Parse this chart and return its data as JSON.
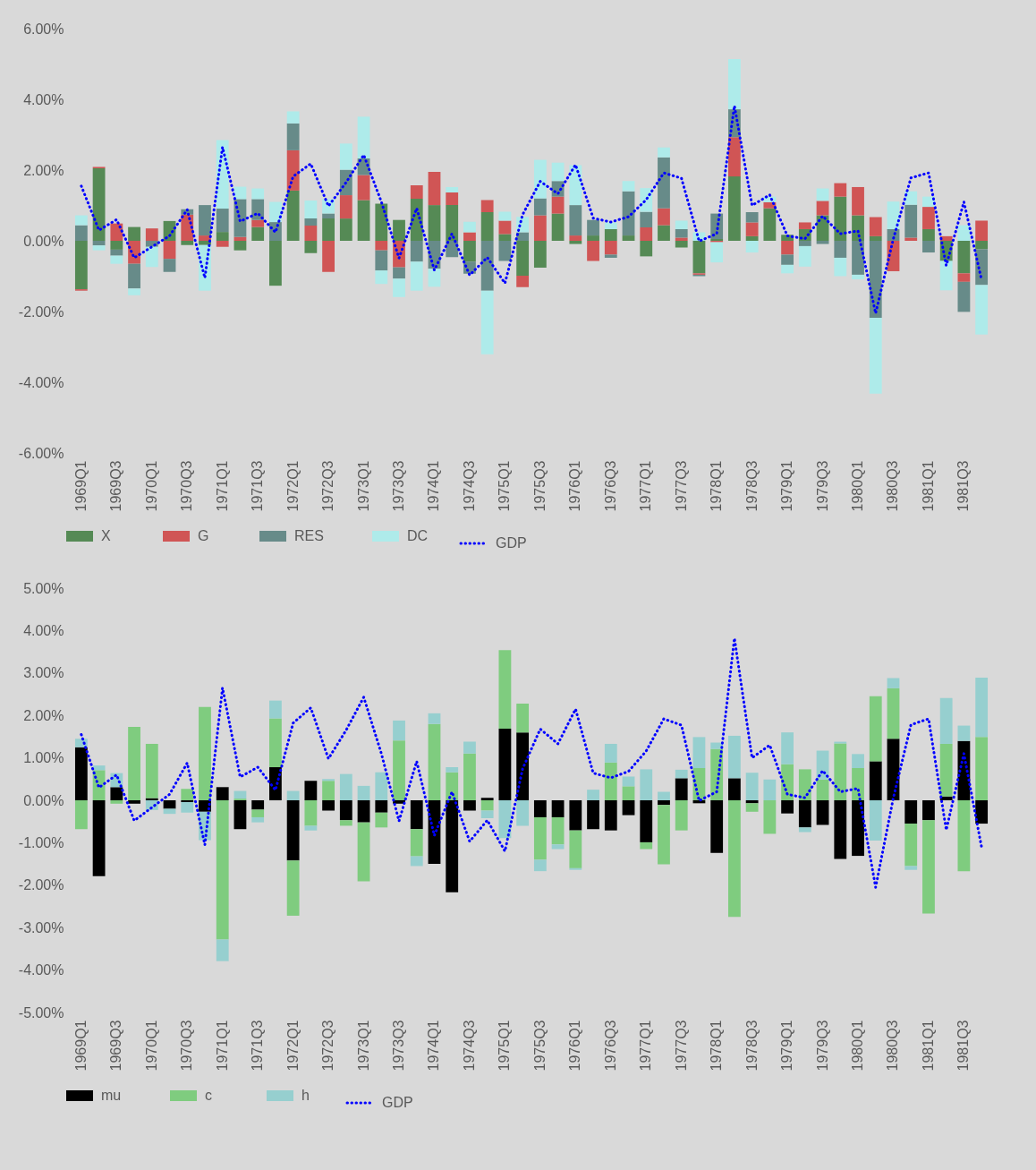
{
  "chart_data": [
    {
      "type": "bar",
      "stacked": true,
      "legend": "bottom",
      "categories": [
        "1969Q1",
        null,
        "1969Q3",
        null,
        "1970Q1",
        null,
        "1970Q3",
        null,
        "1971Q1",
        null,
        "1971Q3",
        null,
        "1972Q1",
        null,
        "1972Q3",
        null,
        "1973Q1",
        null,
        "1973Q3",
        null,
        "1974Q1",
        null,
        "1974Q3",
        null,
        "1975Q1",
        null,
        "1975Q3",
        null,
        "1976Q1",
        null,
        "1976Q3",
        null,
        "1977Q1",
        null,
        "1977Q3",
        null,
        "1978Q1",
        null,
        "1978Q3",
        null,
        "1979Q1",
        null,
        "1979Q3",
        null,
        "1980Q1",
        null,
        "1980Q3",
        null,
        "1981Q1",
        null,
        "1981Q3",
        null
      ],
      "ylim": [
        -6,
        6
      ],
      "yticks": [
        {
          "value": -6,
          "label": "-6.00%"
        },
        {
          "value": -4,
          "label": "-4.00%"
        },
        {
          "value": -2,
          "label": "-2.00%"
        },
        {
          "value": 0,
          "label": "0.00%"
        },
        {
          "value": 2,
          "label": "2.00%"
        },
        {
          "value": 4,
          "label": "4.00%"
        },
        {
          "value": 6,
          "label": "6.00%"
        }
      ],
      "series": [
        {
          "name": "X",
          "color": "#558a55",
          "values": [
            -1.37,
            2.05,
            -0.25,
            0.39,
            0,
            0.56,
            -0.12,
            -0.12,
            0.25,
            -0.27,
            0.39,
            -1.27,
            1.42,
            -0.35,
            0.63,
            0.63,
            1.15,
            1.05,
            0.59,
            1.19,
            1.01,
            1.01,
            -0.59,
            0.81,
            0.19,
            -0.99,
            -0.76,
            0.77,
            -0.09,
            0.15,
            0.33,
            0.15,
            -0.44,
            0.44,
            -0.19,
            -0.92,
            0.05,
            1.82,
            0.13,
            0.92,
            0.17,
            0.33,
            0.72,
            1.25,
            0.72,
            0.13,
            0,
            0,
            0.33,
            -0.57,
            -0.92,
            -0.24
          ]
        },
        {
          "name": "G",
          "color": "#d05555",
          "values": [
            -0.04,
            0.04,
            0.49,
            -0.65,
            0.35,
            -0.51,
            0.74,
            0.15,
            -0.17,
            0.11,
            0.2,
            0,
            1.14,
            0.43,
            -0.88,
            0.66,
            0.71,
            -0.27,
            -0.75,
            0.38,
            0.94,
            0.36,
            0.24,
            0.34,
            0.38,
            -0.32,
            0.72,
            0.48,
            0.15,
            -0.57,
            -0.39,
            0,
            0.38,
            0.48,
            0.09,
            -0.04,
            -0.04,
            1.11,
            0.39,
            0.17,
            -0.39,
            0.19,
            0.41,
            0.38,
            0.8,
            0.54,
            -0.86,
            0.09,
            0.63,
            0.13,
            -0.24,
            0.57
          ]
        },
        {
          "name": "RES",
          "color": "#678b89",
          "values": [
            0.44,
            -0.13,
            -0.17,
            -0.7,
            -0.17,
            -0.37,
            0.15,
            0.86,
            0.66,
            1.07,
            0.59,
            0.53,
            0.76,
            0.2,
            0.14,
            0.72,
            0.47,
            -0.57,
            -0.32,
            -0.59,
            -0.79,
            -0.46,
            -0.34,
            -1.41,
            -0.57,
            0.24,
            0.48,
            0.44,
            0.86,
            0.44,
            -0.09,
            1.25,
            0.44,
            1.44,
            0.24,
            -0.04,
            0.72,
            0.79,
            0.29,
            0,
            -0.29,
            -0.15,
            -0.09,
            -0.48,
            -0.96,
            -2.18,
            0.33,
            0.93,
            -0.33,
            0,
            -0.85,
            -1.01
          ]
        },
        {
          "name": "DC",
          "color": "#aeebea",
          "values": [
            0.28,
            -0.14,
            -0.23,
            -0.19,
            -0.57,
            0,
            null,
            -1.29,
            1.94,
            0.35,
            0.3,
            0.57,
            0.34,
            0.51,
            0.41,
            0.74,
            1.18,
            -0.38,
            -0.52,
            -0.82,
            -0.51,
            0.15,
            0.3,
            -1.8,
            0.25,
            0.44,
            1.09,
            0.52,
            1.13,
            0,
            0.19,
            0.29,
            0.67,
            0.28,
            0.24,
            0.24,
            -0.57,
            1.42,
            -0.33,
            0.16,
            -0.24,
            -0.58,
            0.35,
            -0.52,
            -0.13,
            -2.14,
            0.78,
            0.38,
            0.29,
            -0.83,
            0.44,
            -1.4
          ]
        },
        {
          "name": "GDP",
          "type": "line",
          "line_style": "dotted",
          "color": "#0000ff",
          "values": [
            1.55,
            0.3,
            0.6,
            -0.48,
            -0.17,
            0.14,
            0.88,
            -1.05,
            2.65,
            0.55,
            0.78,
            0.24,
            1.82,
            2.18,
            0.98,
            1.65,
            2.43,
            1.1,
            -0.49,
            0.92,
            -0.83,
            0.2,
            -0.97,
            -0.47,
            -1.2,
            0.74,
            1.68,
            1.33,
            2.15,
            0.64,
            0.53,
            0.68,
            1.16,
            1.92,
            1.77,
            -0.01,
            0.2,
            3.82,
            1.0,
            1.3,
            0.14,
            0.06,
            0.7,
            0.2,
            0.28,
            -2.05,
            0.05,
            1.78,
            1.92,
            -0.7,
            1.1,
            -1.1
          ]
        }
      ]
    },
    {
      "type": "bar",
      "stacked": true,
      "legend": "bottom",
      "categories": [
        "1969Q1",
        null,
        "1969Q3",
        null,
        "1970Q1",
        null,
        "1970Q3",
        null,
        "1971Q1",
        null,
        "1971Q3",
        null,
        "1972Q1",
        null,
        "1972Q3",
        null,
        "1973Q1",
        null,
        "1973Q3",
        null,
        "1974Q1",
        null,
        "1974Q3",
        null,
        "1975Q1",
        null,
        "1975Q3",
        null,
        "1976Q1",
        null,
        "1976Q3",
        null,
        "1977Q1",
        null,
        "1977Q3",
        null,
        "1978Q1",
        null,
        "1978Q3",
        null,
        "1979Q1",
        null,
        "1979Q3",
        null,
        "1980Q1",
        null,
        "1980Q3",
        null,
        "1981Q1",
        null,
        "1981Q3",
        null
      ],
      "ylim": [
        -5,
        5
      ],
      "yticks": [
        {
          "value": -5,
          "label": "-5.00%"
        },
        {
          "value": -4,
          "label": "-4.00%"
        },
        {
          "value": -3,
          "label": "-3.00%"
        },
        {
          "value": -2,
          "label": "-2.00%"
        },
        {
          "value": -1,
          "label": "-1.00%"
        },
        {
          "value": 0,
          "label": "0.00%"
        },
        {
          "value": 1,
          "label": "1.00%"
        },
        {
          "value": 2,
          "label": "2.00%"
        },
        {
          "value": 3,
          "label": "3.00%"
        },
        {
          "value": 4,
          "label": "4.00%"
        },
        {
          "value": 5,
          "label": "5.00%"
        }
      ],
      "series": [
        {
          "name": "mu",
          "color": "#000000",
          "values": [
            1.25,
            -1.79,
            0.31,
            -0.08,
            0.05,
            -0.2,
            -0.04,
            -0.27,
            0.31,
            -0.68,
            -0.22,
            0.78,
            -1.42,
            0.46,
            -0.24,
            -0.47,
            -0.52,
            -0.29,
            -0.08,
            -0.68,
            -1.5,
            -2.17,
            -0.24,
            0.06,
            1.69,
            1.6,
            -0.4,
            -0.4,
            -0.71,
            -0.68,
            -0.71,
            -0.35,
            -0.99,
            -0.11,
            0.52,
            -0.07,
            -1.24,
            0.52,
            -0.07,
            0,
            -0.31,
            -0.64,
            -0.58,
            -1.38,
            -1.31,
            0.92,
            1.45,
            -0.55,
            -0.47,
            0.09,
            1.4,
            -0.55
          ]
        },
        {
          "name": "c",
          "color": "#7fcc7f",
          "values": [
            -0.68,
            0.71,
            -0.08,
            1.73,
            1.28,
            0,
            0.27,
            2.2,
            -3.28,
            0.04,
            -0.18,
            1.15,
            -1.3,
            -0.6,
            0.46,
            -0.13,
            -1.39,
            -0.35,
            1.41,
            -0.64,
            1.8,
            0.66,
            1.1,
            -0.24,
            1.85,
            0.68,
            -1.0,
            -0.64,
            -0.89,
            0,
            0.89,
            0.33,
            -0.16,
            -1.4,
            -0.71,
            0.76,
            1.21,
            -2.75,
            -0.2,
            -0.79,
            0.85,
            0.73,
            0.49,
            1.34,
            0.76,
            1.53,
            1.19,
            -1.0,
            -2.2,
            1.24,
            -1.67,
            1.49
          ]
        },
        {
          "name": "h",
          "color": "#96cfcf",
          "values": [
            0.2,
            0.11,
            0.33,
            null,
            -0.23,
            -0.12,
            -0.25,
            -0.67,
            -0.51,
            0.18,
            -0.12,
            0.42,
            0.22,
            -0.11,
            0.04,
            0.62,
            0.34,
            0.66,
            0.47,
            -0.23,
            0.25,
            0.12,
            0.28,
            -0.18,
            -0.89,
            -0.6,
            -0.27,
            -0.11,
            -0.04,
            0.25,
            0.44,
            0.23,
            0.73,
            0.2,
            0.2,
            0.73,
            0.15,
            1.0,
            0.65,
            0.49,
            0.75,
            -0.11,
            0.68,
            0.04,
            0.33,
            -0.95,
            0.24,
            -0.09,
            0,
            1.08,
            0.36,
            1.4
          ]
        },
        {
          "name": "GDP",
          "type": "line",
          "line_style": "dotted",
          "color": "#0000ff",
          "values": [
            1.55,
            0.3,
            0.6,
            -0.48,
            -0.17,
            0.14,
            0.88,
            -1.05,
            2.65,
            0.55,
            0.78,
            0.24,
            1.82,
            2.18,
            0.98,
            1.65,
            2.43,
            1.1,
            -0.49,
            0.92,
            -0.83,
            0.2,
            -0.97,
            -0.47,
            -1.2,
            0.74,
            1.68,
            1.33,
            2.15,
            0.64,
            0.53,
            0.68,
            1.16,
            1.92,
            1.77,
            -0.01,
            0.2,
            3.82,
            1.0,
            1.3,
            0.14,
            0.06,
            0.7,
            0.2,
            0.28,
            -2.05,
            0.05,
            1.78,
            1.92,
            -0.7,
            1.1,
            -1.1
          ]
        }
      ]
    }
  ]
}
